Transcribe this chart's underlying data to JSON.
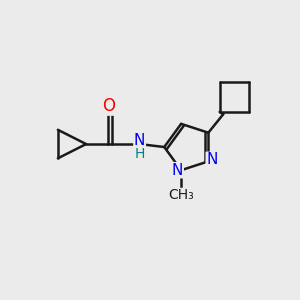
{
  "background_color": "#EBEBEB",
  "bond_color": "#1a1a1a",
  "bond_width": 1.8,
  "atom_colors": {
    "O": "#FF0000",
    "N_blue": "#0000EE",
    "N_teal": "#008080",
    "C": "#1a1a1a"
  },
  "font_size": 11,
  "xlim": [
    0,
    10
  ],
  "ylim": [
    0,
    10
  ]
}
